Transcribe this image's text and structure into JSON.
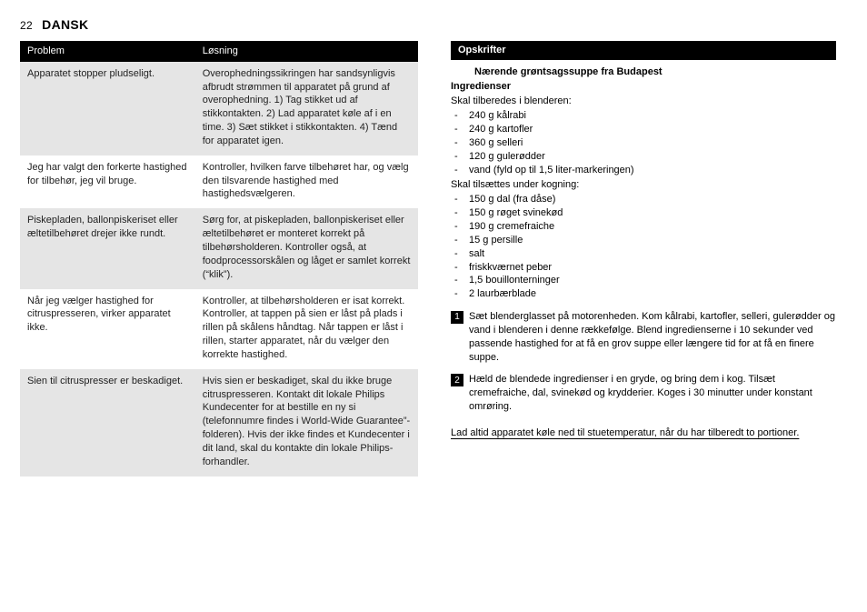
{
  "page": {
    "number": "22",
    "language": "DANSK"
  },
  "table": {
    "headers": {
      "problem": "Problem",
      "solution": "Løsning"
    },
    "rows": [
      {
        "shade": true,
        "problem": "Apparatet stopper pludseligt.",
        "solution": "Overophedningssikringen har sandsynligvis afbrudt strømmen til apparatet på grund af overophedning. 1) Tag stikket ud af stikkontakten. 2) Lad apparatet køle af i en time. 3) Sæt stikket i stikkontakten. 4) Tænd for apparatet igen."
      },
      {
        "shade": false,
        "problem": "Jeg har valgt den forkerte hastighed for tilbehør, jeg vil bruge.",
        "solution": "Kontroller, hvilken farve tilbehøret har, og vælg den tilsvarende hastighed med hastighedsvælgeren."
      },
      {
        "shade": true,
        "problem": "Piskepladen, ballonpiskeriset eller æltetilbehøret drejer ikke rundt.",
        "solution": "Sørg for, at piskepladen, ballonpiskeriset eller æltetilbehøret er monteret korrekt på tilbehørsholderen. Kontroller også, at foodprocessorskålen og låget er samlet korrekt (“klik”)."
      },
      {
        "shade": false,
        "problem": "Når jeg vælger hastighed for citruspresseren, virker apparatet ikke.",
        "solution": "Kontroller, at tilbehørsholderen er isat korrekt. Kontroller, at tappen på sien er låst på plads i rillen på skålens håndtag. Når tappen er låst i rillen, starter apparatet, når du vælger den korrekte hastighed."
      },
      {
        "shade": true,
        "problem": "Sien til citruspresser er beskadiget.",
        "solution": "Hvis sien er beskadiget, skal du ikke bruge citruspresseren. Kontakt dit lokale Philips Kundecenter for at bestille en ny si (telefonnumre findes i World-Wide Guarantee”-folderen). Hvis der ikke findes et Kundecenter i dit land, skal du kontakte din lokale Philips-forhandler."
      }
    ]
  },
  "recipes": {
    "section_title": "Opskrifter",
    "title": "Nærende grøntsagssuppe fra Budapest",
    "sub_ingredients": "Ingredienser",
    "group1_intro": "Skal tilberedes i blenderen:",
    "group1": [
      "240 g kålrabi",
      "240 g kartofler",
      "360 g selleri",
      "120 g gulerødder",
      "vand (fyld op til 1,5 liter-markeringen)"
    ],
    "group2_intro": "Skal tilsættes under kogning:",
    "group2": [
      "150 g dal (fra dåse)",
      "150 g røget svinekød",
      "190 g cremefraiche",
      "15 g persille",
      "salt",
      "friskkværnet peber",
      "1,5 bouillonterninger",
      "2 laurbærblade"
    ],
    "steps": [
      "Sæt blenderglasset på motorenheden. Kom kålrabi, kartofler, selleri, gulerødder og vand i blenderen i denne rækkefølge. Blend ingredienserne i 10 sekunder ved passende hastighed for at få en grov suppe eller længere tid for at få en finere suppe.",
      "Hæld de blendede ingredienser i en gryde, og bring dem i kog. Tilsæt cremefraiche, dal, svinekød og krydderier. Koges i 30 minutter under konstant omrøring."
    ],
    "footnote": "Lad altid apparatet køle ned til stuetemperatur, når du har tilberedt to portioner."
  }
}
